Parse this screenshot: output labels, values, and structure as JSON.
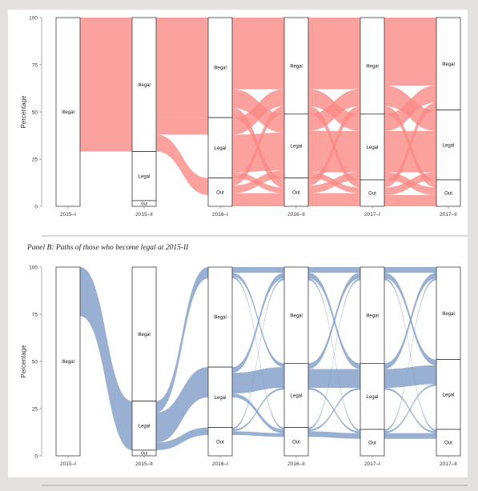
{
  "panel_b_title": "Panel B: Paths of those who become legal at 2015-II",
  "chart_data": [
    {
      "type": "alluvial",
      "panel": "A",
      "color": "#fa8884",
      "ylabel": "Percentage",
      "ylim": [
        0,
        100
      ],
      "yticks": [
        0,
        25,
        50,
        75,
        100
      ],
      "x": [
        "2015–I",
        "2015–II",
        "2016–I",
        "2016–II",
        "2017–I",
        "2017–II"
      ],
      "nodes": [
        [
          {
            "label": "Illegal",
            "value": 100
          }
        ],
        [
          {
            "label": "Illegal",
            "value": 71
          },
          {
            "label": "Legal",
            "value": 26
          },
          {
            "label": "Out",
            "value": 3
          }
        ],
        [
          {
            "label": "Illegal",
            "value": 53
          },
          {
            "label": "Legal",
            "value": 32
          },
          {
            "label": "Out",
            "value": 15
          }
        ],
        [
          {
            "label": "Illegal",
            "value": 51
          },
          {
            "label": "Legal",
            "value": 34
          },
          {
            "label": "Out",
            "value": 15
          }
        ],
        [
          {
            "label": "Illegal",
            "value": 51
          },
          {
            "label": "Legal",
            "value": 35
          },
          {
            "label": "Out",
            "value": 14
          }
        ],
        [
          {
            "label": "Illegal",
            "value": 49
          },
          {
            "label": "Legal",
            "value": 37
          },
          {
            "label": "Out",
            "value": 14
          }
        ]
      ],
      "flows": [
        [
          {
            "from": "Illegal",
            "to": "Illegal",
            "value": 71
          }
        ],
        [
          {
            "from": "Illegal",
            "to": "Illegal",
            "value": 53
          },
          {
            "from": "Illegal",
            "to": "Legal",
            "value": 9
          },
          {
            "from": "Illegal",
            "to": "Out",
            "value": 9
          }
        ],
        [
          {
            "from": "Illegal",
            "to": "Illegal",
            "value": 38
          },
          {
            "from": "Illegal",
            "to": "Legal",
            "value": 10
          },
          {
            "from": "Illegal",
            "to": "Out",
            "value": 5
          },
          {
            "from": "Legal",
            "to": "Illegal",
            "value": 9
          },
          {
            "from": "Legal",
            "to": "Legal",
            "value": 20
          },
          {
            "from": "Legal",
            "to": "Out",
            "value": 3
          },
          {
            "from": "Out",
            "to": "Illegal",
            "value": 4
          },
          {
            "from": "Out",
            "to": "Legal",
            "value": 4
          },
          {
            "from": "Out",
            "to": "Out",
            "value": 7
          }
        ],
        [
          {
            "from": "Illegal",
            "to": "Illegal",
            "value": 38
          },
          {
            "from": "Illegal",
            "to": "Legal",
            "value": 9
          },
          {
            "from": "Illegal",
            "to": "Out",
            "value": 4
          },
          {
            "from": "Legal",
            "to": "Illegal",
            "value": 9
          },
          {
            "from": "Legal",
            "to": "Legal",
            "value": 22
          },
          {
            "from": "Legal",
            "to": "Out",
            "value": 3
          },
          {
            "from": "Out",
            "to": "Illegal",
            "value": 4
          },
          {
            "from": "Out",
            "to": "Legal",
            "value": 4
          },
          {
            "from": "Out",
            "to": "Out",
            "value": 7
          }
        ],
        [
          {
            "from": "Illegal",
            "to": "Illegal",
            "value": 36
          },
          {
            "from": "Illegal",
            "to": "Legal",
            "value": 11
          },
          {
            "from": "Illegal",
            "to": "Out",
            "value": 4
          },
          {
            "from": "Legal",
            "to": "Illegal",
            "value": 9
          },
          {
            "from": "Legal",
            "to": "Legal",
            "value": 22
          },
          {
            "from": "Legal",
            "to": "Out",
            "value": 4
          },
          {
            "from": "Out",
            "to": "Illegal",
            "value": 4
          },
          {
            "from": "Out",
            "to": "Legal",
            "value": 4
          },
          {
            "from": "Out",
            "to": "Out",
            "value": 6
          }
        ]
      ]
    },
    {
      "type": "alluvial",
      "panel": "B",
      "color": "#7d9ac6",
      "ylabel": "Percentage",
      "ylim": [
        0,
        100
      ],
      "yticks": [
        0,
        25,
        50,
        75,
        100
      ],
      "x": [
        "2015–I",
        "2015–II",
        "2016–I",
        "2016–II",
        "2017–I",
        "2017–II"
      ],
      "nodes": [
        [
          {
            "label": "Illegal",
            "value": 100
          }
        ],
        [
          {
            "label": "Illegal",
            "value": 71
          },
          {
            "label": "Legal",
            "value": 26
          },
          {
            "label": "Out",
            "value": 3
          }
        ],
        [
          {
            "label": "Illegal",
            "value": 53
          },
          {
            "label": "Legal",
            "value": 32
          },
          {
            "label": "Out",
            "value": 15
          }
        ],
        [
          {
            "label": "Illegal",
            "value": 51
          },
          {
            "label": "Legal",
            "value": 34
          },
          {
            "label": "Out",
            "value": 15
          }
        ],
        [
          {
            "label": "Illegal",
            "value": 51
          },
          {
            "label": "Legal",
            "value": 35
          },
          {
            "label": "Out",
            "value": 14
          }
        ],
        [
          {
            "label": "Illegal",
            "value": 49
          },
          {
            "label": "Legal",
            "value": 37
          },
          {
            "label": "Out",
            "value": 14
          }
        ]
      ],
      "flows": [
        [
          {
            "from": "Illegal",
            "to": "Legal",
            "value": 26
          }
        ],
        [
          {
            "from": "Legal",
            "to": "Illegal",
            "value": 6
          },
          {
            "from": "Legal",
            "to": "Legal",
            "value": 16
          },
          {
            "from": "Legal",
            "to": "Out",
            "value": 4
          }
        ],
        [
          {
            "from": "Illegal",
            "to": "Illegal",
            "value": 3
          },
          {
            "from": "Illegal",
            "to": "Legal",
            "value": 2
          },
          {
            "from": "Illegal",
            "to": "Out",
            "value": 1
          },
          {
            "from": "Legal",
            "to": "Illegal",
            "value": 3
          },
          {
            "from": "Legal",
            "to": "Legal",
            "value": 11
          },
          {
            "from": "Legal",
            "to": "Out",
            "value": 2
          },
          {
            "from": "Out",
            "to": "Illegal",
            "value": 1
          },
          {
            "from": "Out",
            "to": "Legal",
            "value": 1
          },
          {
            "from": "Out",
            "to": "Out",
            "value": 2
          }
        ],
        [
          {
            "from": "Illegal",
            "to": "Illegal",
            "value": 3
          },
          {
            "from": "Illegal",
            "to": "Legal",
            "value": 3
          },
          {
            "from": "Illegal",
            "to": "Out",
            "value": 1
          },
          {
            "from": "Legal",
            "to": "Illegal",
            "value": 3
          },
          {
            "from": "Legal",
            "to": "Legal",
            "value": 10
          },
          {
            "from": "Legal",
            "to": "Out",
            "value": 1
          },
          {
            "from": "Out",
            "to": "Illegal",
            "value": 1
          },
          {
            "from": "Out",
            "to": "Legal",
            "value": 1
          },
          {
            "from": "Out",
            "to": "Out",
            "value": 3
          }
        ],
        [
          {
            "from": "Illegal",
            "to": "Illegal",
            "value": 3
          },
          {
            "from": "Illegal",
            "to": "Legal",
            "value": 3
          },
          {
            "from": "Illegal",
            "to": "Out",
            "value": 1
          },
          {
            "from": "Legal",
            "to": "Illegal",
            "value": 3
          },
          {
            "from": "Legal",
            "to": "Legal",
            "value": 10
          },
          {
            "from": "Legal",
            "to": "Out",
            "value": 1
          },
          {
            "from": "Out",
            "to": "Illegal",
            "value": 1
          },
          {
            "from": "Out",
            "to": "Legal",
            "value": 1
          },
          {
            "from": "Out",
            "to": "Out",
            "value": 3
          }
        ]
      ]
    }
  ]
}
